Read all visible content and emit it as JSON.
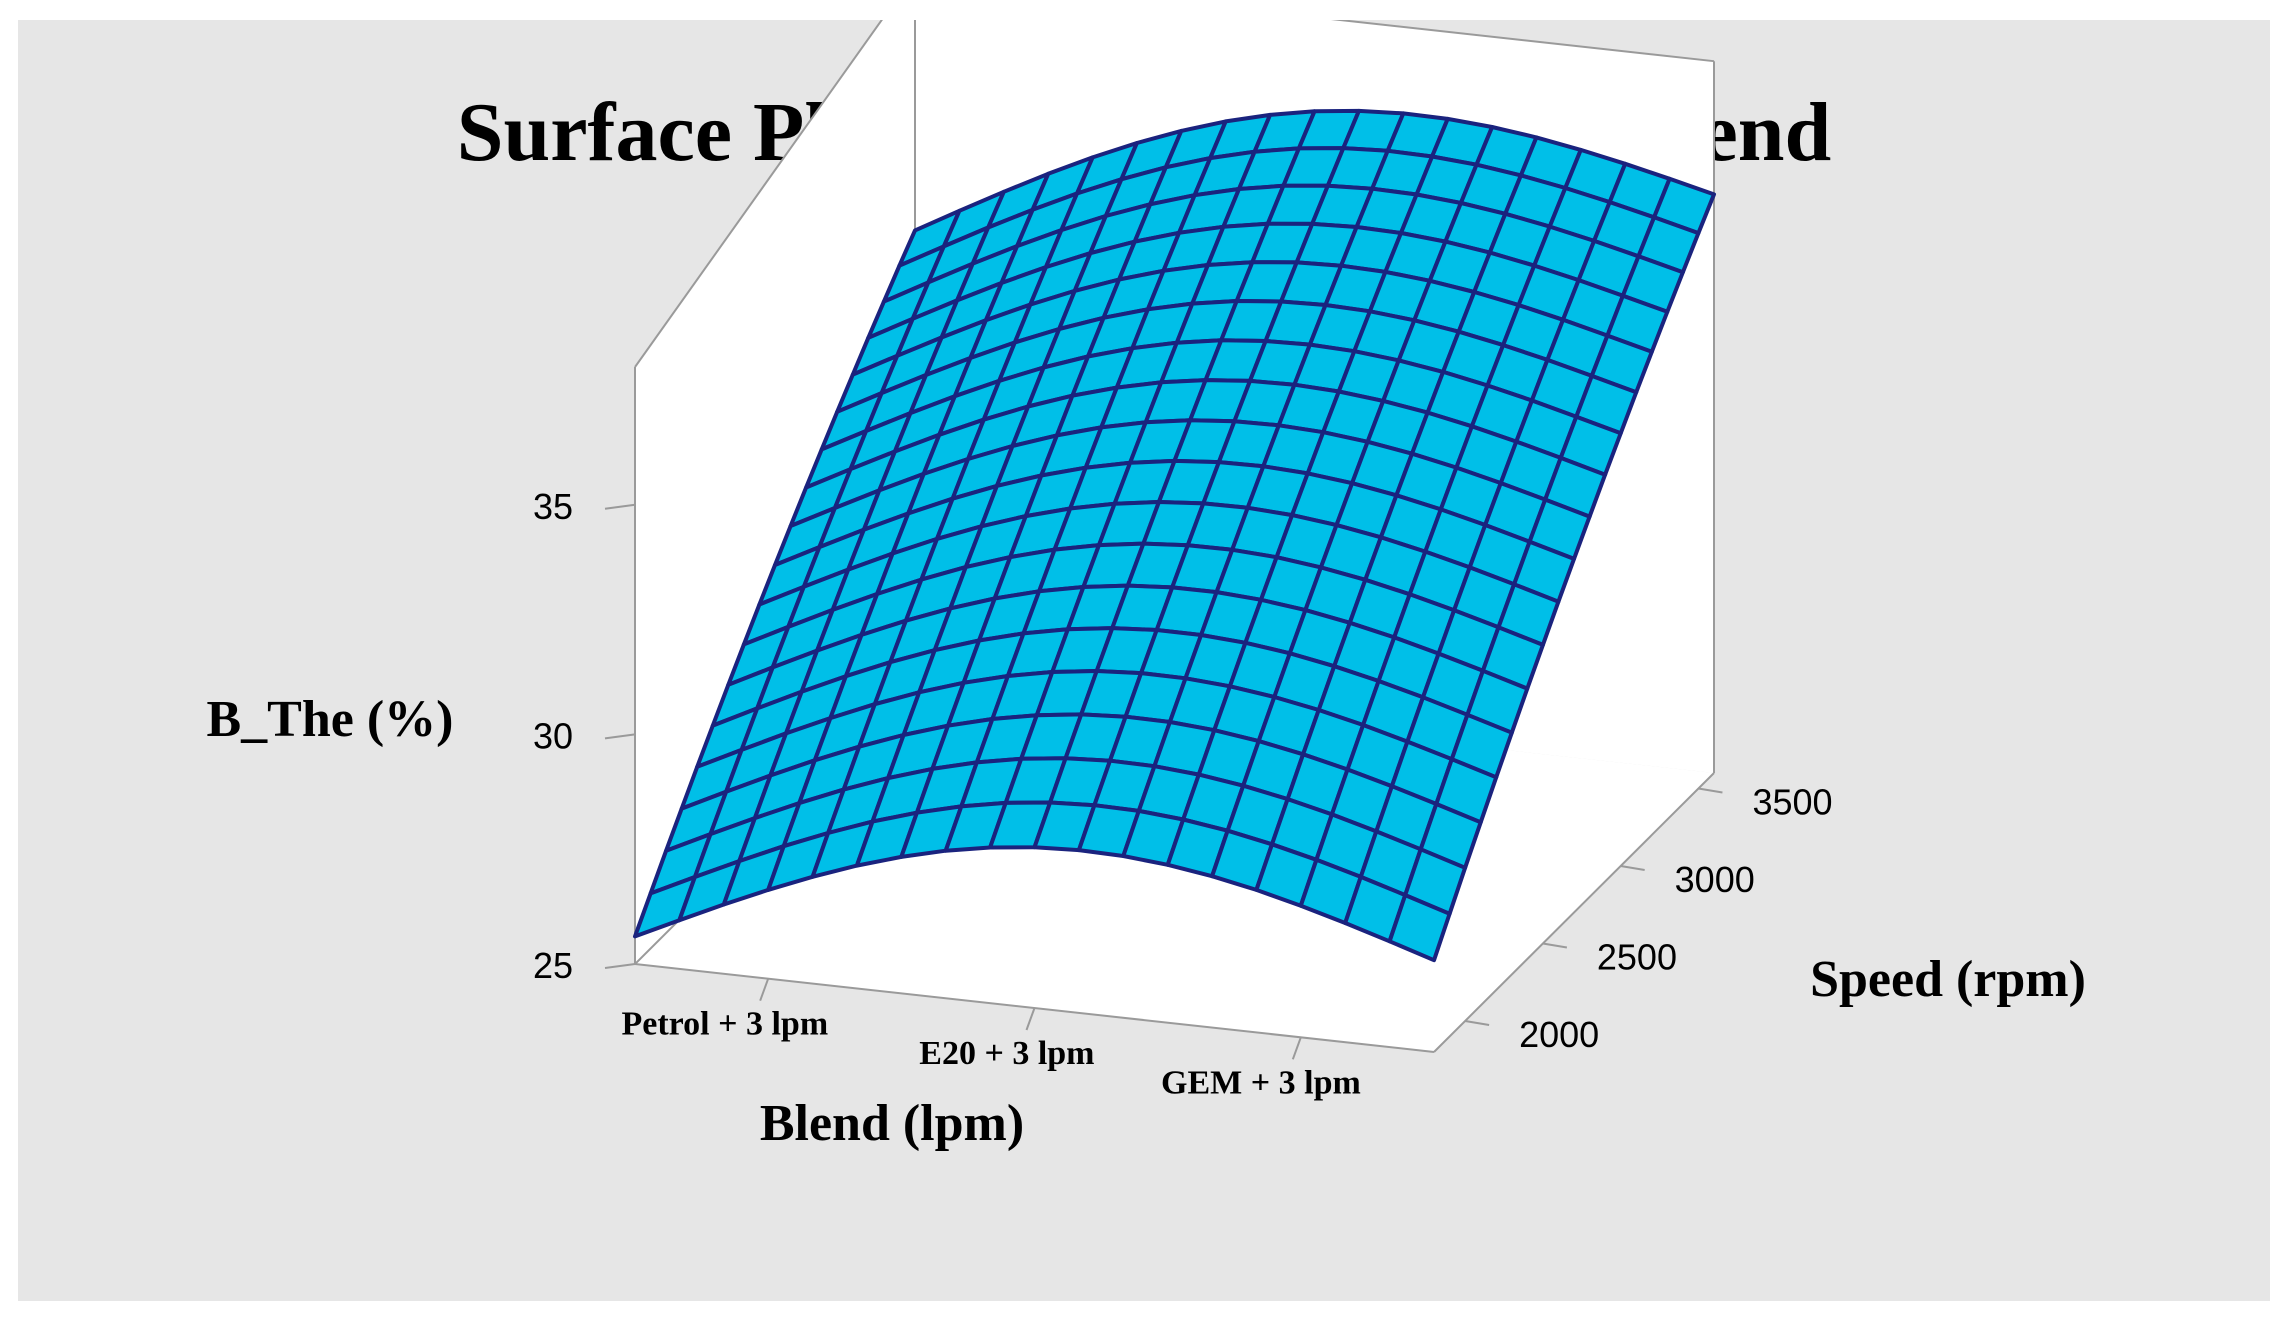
{
  "chart_data": {
    "type": "surface",
    "title": "Surface Plot of B_The vs Speed, Blend",
    "xlabel": "Blend (lpm)",
    "ylabel": "Speed (rpm)",
    "zlabel": "B_The (%)",
    "x_categories": [
      "Petrol + 3 lpm",
      "E20 + 3 lpm",
      "GEM + 3 lpm"
    ],
    "y_ticks": [
      2000,
      2500,
      3000,
      3500
    ],
    "z_ticks": [
      25,
      30,
      35
    ],
    "zlim": [
      25,
      38
    ],
    "surface_color": "#00bfe8",
    "mesh_color": "#1a237e",
    "corner_values": {
      "petrol_2000": 25.6,
      "petrol_3500": 34.9,
      "gem_2000": 27.0,
      "gem_3500": 37.6
    },
    "grid": true
  }
}
